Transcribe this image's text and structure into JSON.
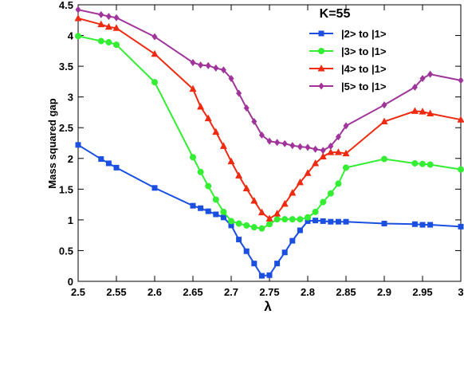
{
  "chart_data": {
    "type": "line",
    "x_label": "λ",
    "y_label": "Mass squared gap",
    "legend_title": "K=55",
    "x": [
      2.5,
      2.53,
      2.54,
      2.55,
      2.6,
      2.65,
      2.66,
      2.67,
      2.68,
      2.69,
      2.7,
      2.71,
      2.72,
      2.73,
      2.74,
      2.75,
      2.76,
      2.77,
      2.78,
      2.79,
      2.8,
      2.81,
      2.82,
      2.83,
      2.84,
      2.85,
      2.9,
      2.94,
      2.95,
      2.96,
      3.0
    ],
    "series": [
      {
        "name": "|2> to  |1>",
        "color": "#1a4fe0",
        "marker": "square",
        "values": [
          2.22,
          1.99,
          1.92,
          1.85,
          1.52,
          1.23,
          1.19,
          1.14,
          1.09,
          1.04,
          0.91,
          0.68,
          0.49,
          0.29,
          0.09,
          0.1,
          0.29,
          0.47,
          0.66,
          0.83,
          0.98,
          0.99,
          0.98,
          0.97,
          0.97,
          0.97,
          0.94,
          0.93,
          0.92,
          0.92,
          0.89
        ]
      },
      {
        "name": "|3> to  |1>",
        "color": "#33ee33",
        "marker": "circle",
        "values": [
          3.99,
          3.91,
          3.89,
          3.85,
          3.24,
          2.02,
          1.78,
          1.55,
          1.33,
          1.13,
          0.98,
          0.94,
          0.91,
          0.88,
          0.86,
          0.93,
          1.01,
          1.01,
          1.01,
          1.01,
          1.04,
          1.13,
          1.29,
          1.43,
          1.59,
          1.85,
          1.99,
          1.92,
          1.91,
          1.9,
          1.82
        ]
      },
      {
        "name": "|4> to  |1>",
        "color": "#ee2a11",
        "marker": "triangle",
        "values": [
          4.28,
          4.18,
          4.14,
          4.12,
          3.7,
          3.13,
          2.84,
          2.65,
          2.43,
          2.2,
          1.95,
          1.72,
          1.51,
          1.31,
          1.12,
          1.02,
          1.1,
          1.26,
          1.44,
          1.61,
          1.76,
          1.92,
          2.03,
          2.1,
          2.1,
          2.08,
          2.6,
          2.77,
          2.76,
          2.73,
          2.63
        ]
      },
      {
        "name": "|5> to  |1>",
        "color": "#a0349a",
        "marker": "diamond",
        "values": [
          4.42,
          4.34,
          4.31,
          4.29,
          3.98,
          3.56,
          3.52,
          3.51,
          3.47,
          3.44,
          3.3,
          3.06,
          2.82,
          2.6,
          2.38,
          2.28,
          2.26,
          2.24,
          2.21,
          2.19,
          2.18,
          2.15,
          2.13,
          2.2,
          2.35,
          2.53,
          2.87,
          3.16,
          3.3,
          3.37,
          3.27
        ]
      }
    ],
    "xlim": [
      2.5,
      3
    ],
    "ylim": [
      0,
      4.5
    ],
    "xticks": [
      2.5,
      2.55,
      2.6,
      2.65,
      2.7,
      2.75,
      2.8,
      2.85,
      2.9,
      2.95,
      3
    ],
    "yticks": [
      0,
      0.5,
      1,
      1.5,
      2,
      2.5,
      3,
      3.5,
      4,
      4.5
    ]
  }
}
